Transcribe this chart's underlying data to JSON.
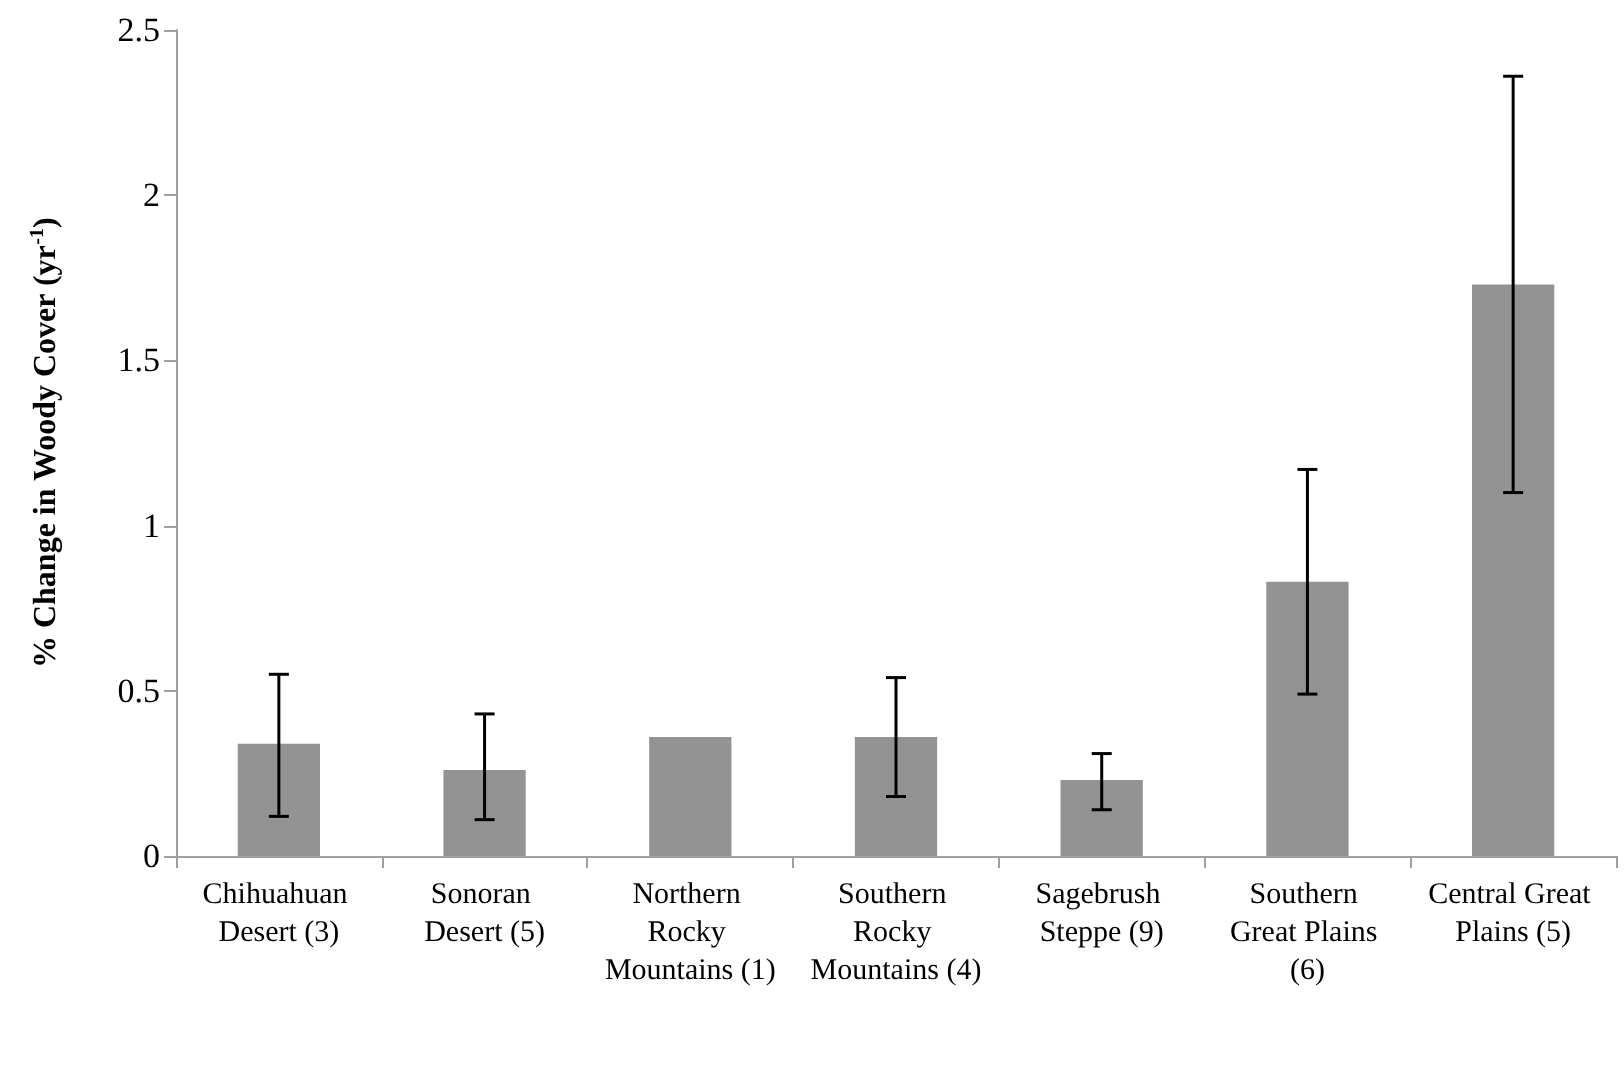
{
  "chart_data": {
    "type": "bar",
    "ylabel": "% Change in Woody Cover (yr$^{-1}$)",
    "categories": [
      "Chihuahuan Desert (3)",
      "Sonoran Desert (5)",
      "Northern Rocky Mountains (1)",
      "Southern Rocky Mountains (4)",
      "Sagebrush Steppe (9)",
      "Southern Great Plains (6)",
      "Central Great Plains (5)"
    ],
    "values": [
      0.34,
      0.26,
      0.36,
      0.36,
      0.23,
      0.83,
      1.73
    ],
    "errors": [
      [
        0.12,
        0.55
      ],
      [
        0.11,
        0.43
      ],
      null,
      [
        0.18,
        0.54
      ],
      [
        0.14,
        0.31
      ],
      [
        0.49,
        1.17
      ],
      [
        1.1,
        2.36
      ]
    ],
    "color": "#939393",
    "ylim": [
      0,
      2.5
    ],
    "yticks": [
      0,
      0.5,
      1,
      1.5,
      2,
      2.5
    ],
    "grid": false
  }
}
